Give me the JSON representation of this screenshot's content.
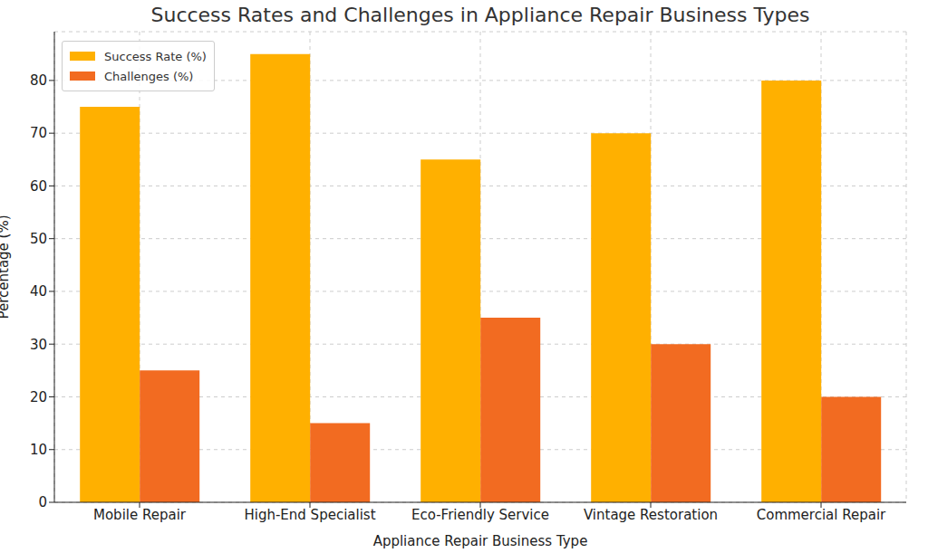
{
  "chart_data": {
    "type": "bar",
    "title": "Success Rates and Challenges in Appliance Repair Business Types",
    "x_label": "Appliance Repair Business Type",
    "y_label": "Percentage (%)",
    "categories": [
      "Mobile Repair",
      "High-End Specialist",
      "Eco-Friendly Service",
      "Vintage Restoration",
      "Commercial Repair"
    ],
    "series": [
      {
        "name": "Success Rate (%)",
        "color": "#ffb000",
        "values": [
          75,
          85,
          65,
          70,
          80
        ]
      },
      {
        "name": "Challenges (%)",
        "color": "#f26b21",
        "values": [
          25,
          15,
          35,
          30,
          20
        ]
      }
    ],
    "ylim": [
      0,
      89.25
    ],
    "yticks": [
      0,
      10,
      20,
      30,
      40,
      50,
      60,
      70,
      80
    ],
    "grid": true,
    "legend": "upper left"
  }
}
